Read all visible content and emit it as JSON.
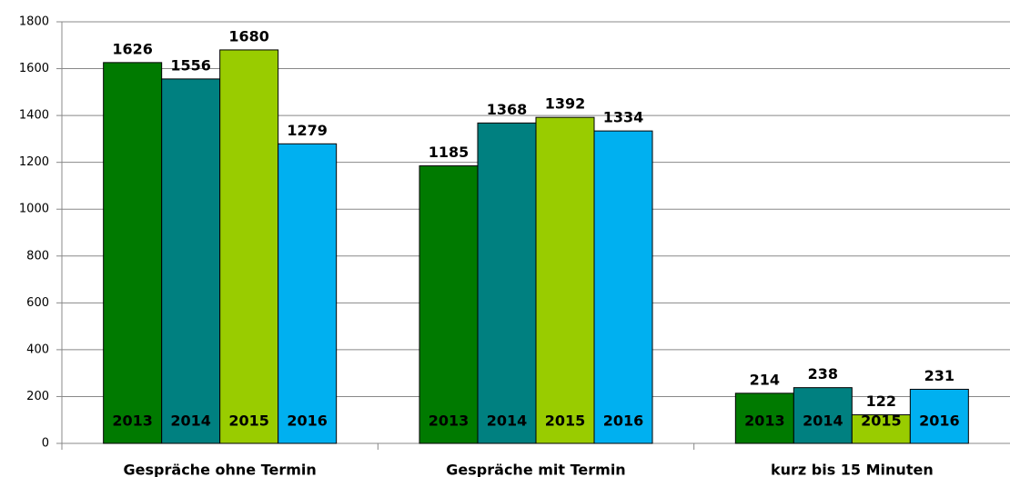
{
  "chart_data": {
    "type": "bar",
    "categories": [
      "Gespräche ohne Termin",
      "Gespräche mit Termin",
      "kurz bis 15 Minuten"
    ],
    "series": [
      {
        "name": "2013",
        "color": "#007a00",
        "values": [
          1626,
          1185,
          214
        ]
      },
      {
        "name": "2014",
        "color": "#008080",
        "values": [
          1556,
          1368,
          238
        ]
      },
      {
        "name": "2015",
        "color": "#99cc00",
        "values": [
          1680,
          1392,
          122
        ]
      },
      {
        "name": "2016",
        "color": "#00b0f0",
        "values": [
          1279,
          1334,
          231
        ]
      }
    ],
    "ylim": [
      0,
      1800
    ],
    "yticks": [
      0,
      200,
      400,
      600,
      800,
      1000,
      1200,
      1400,
      1600,
      1800
    ],
    "grid": true
  }
}
